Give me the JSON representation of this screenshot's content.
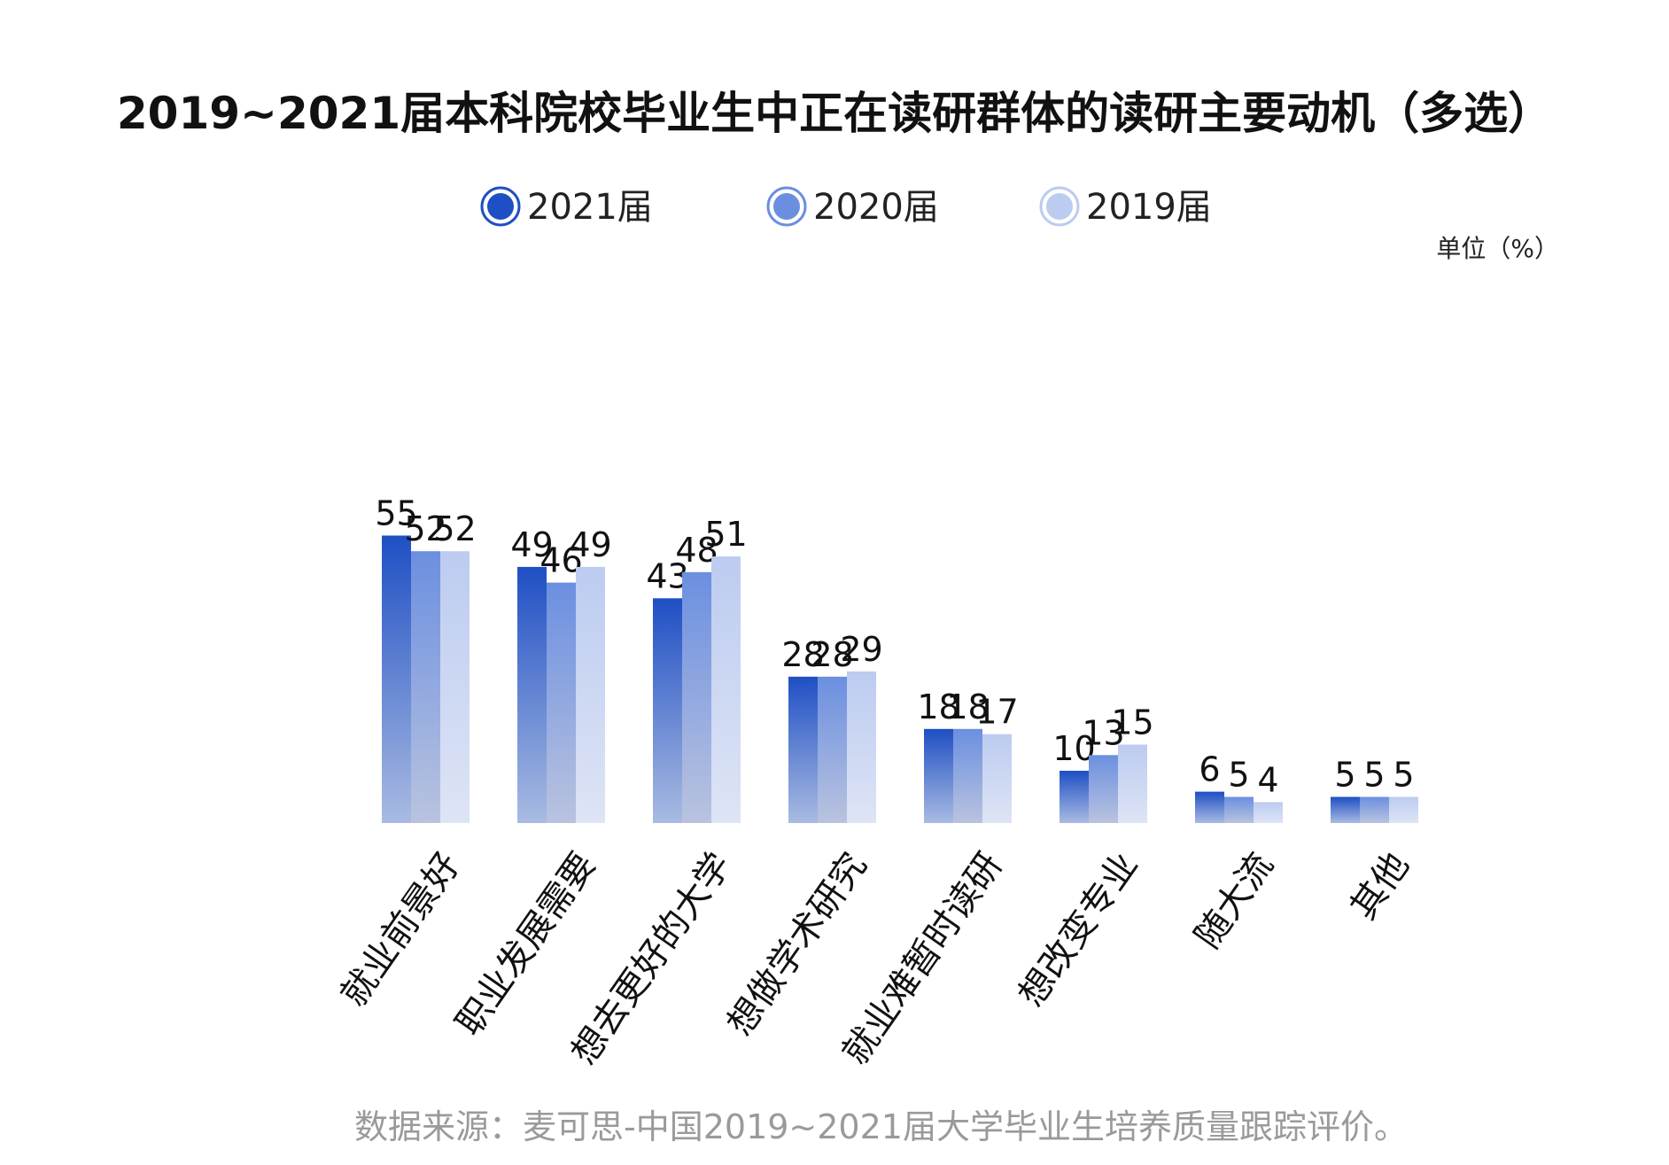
{
  "chart_data": {
    "type": "bar",
    "title": "2019~2021届本科院校毕业生中正在读研群体的读研主要动机（多选）",
    "unit_label": "单位（%）",
    "categories": [
      "就业前景好",
      "职业发展需要",
      "想去更好的大学",
      "想做学术研究",
      "就业难暂时读研",
      "想改变专业",
      "随大流",
      "其他"
    ],
    "series": [
      {
        "name": "2021届",
        "color": "#1f4fc4",
        "values": [
          55,
          49,
          43,
          28,
          18,
          10,
          6,
          5
        ]
      },
      {
        "name": "2020届",
        "color": "#6b8fe0",
        "values": [
          52,
          46,
          48,
          28,
          18,
          13,
          5,
          5
        ]
      },
      {
        "name": "2019届",
        "color": "#bccbf0",
        "values": [
          52,
          49,
          51,
          29,
          17,
          15,
          4,
          5
        ]
      }
    ],
    "legend_position": "top-center",
    "grid": false,
    "ylim": [
      0,
      55
    ],
    "source": "数据来源：麦可思-中国2019~2021届大学毕业生培养质量跟踪评价。"
  }
}
